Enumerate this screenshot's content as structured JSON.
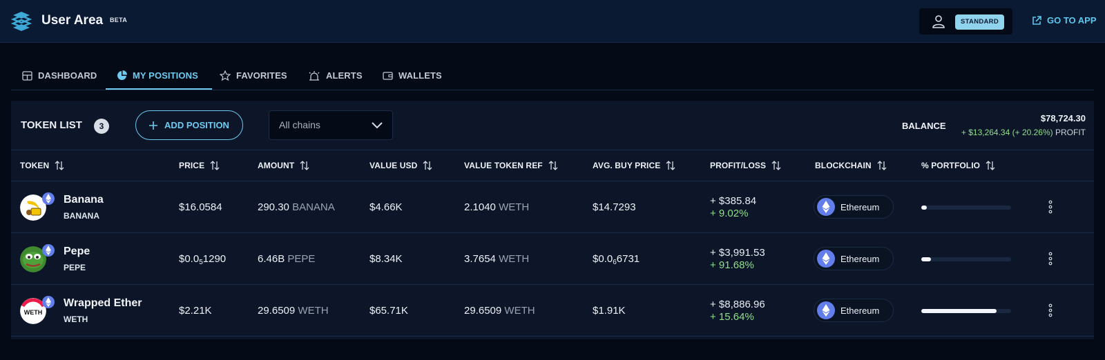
{
  "header": {
    "title": "User Area",
    "badge": "BETA",
    "plan": "STANDARD",
    "go_to_app": "GO TO APP",
    "icons": {
      "logo": "logo-icon",
      "user": "user-icon",
      "external": "external-link-icon"
    }
  },
  "tabs": [
    {
      "label": "DASHBOARD",
      "icon": "dashboard-icon",
      "active": false
    },
    {
      "label": "MY POSITIONS",
      "icon": "pie-chart-icon",
      "active": true
    },
    {
      "label": "FAVORITES",
      "icon": "star-icon",
      "active": false
    },
    {
      "label": "ALERTS",
      "icon": "alarm-icon",
      "active": false
    },
    {
      "label": "WALLETS",
      "icon": "wallet-icon",
      "active": false
    }
  ],
  "toolbar": {
    "title": "TOKEN LIST",
    "count": "3",
    "add_label": "ADD POSITION",
    "chain_filter": "All chains",
    "balance_label": "BALANCE",
    "balance_value": "$78,724.30",
    "balance_change": "+ $13,264.34 (+ 20.26%)",
    "balance_suffix": "PROFIT"
  },
  "columns": [
    "TOKEN",
    "PRICE",
    "AMOUNT",
    "VALUE USD",
    "VALUE TOKEN REF",
    "AVG. BUY PRICE",
    "PROFIT/LOSS",
    "BLOCKCHAIN",
    "% PORTFOLIO"
  ],
  "rows": [
    {
      "name": "Banana",
      "symbol": "BANANA",
      "price_main": "$16.0584",
      "price_sub": "",
      "price_tail": "",
      "amount": "290.30",
      "amount_unit": "BANANA",
      "value_usd": "$4.66K",
      "value_ref": "2.1040",
      "value_ref_unit": "WETH",
      "avg_main": "$14.7293",
      "avg_sub": "",
      "avg_tail": "",
      "pl_usd": "+ $385.84",
      "pl_pct": "+ 9.02%",
      "chain": "Ethereum",
      "portfolio_pct": 5.9
    },
    {
      "name": "Pepe",
      "symbol": "PEPE",
      "price_main": "$0.0",
      "price_sub": "5",
      "price_tail": "1290",
      "amount": "6.46B",
      "amount_unit": "PEPE",
      "value_usd": "$8.34K",
      "value_ref": "3.7654",
      "value_ref_unit": "WETH",
      "avg_main": "$0.0",
      "avg_sub": "6",
      "avg_tail": "6731",
      "pl_usd": "+ $3,991.53",
      "pl_pct": "+ 91.68%",
      "chain": "Ethereum",
      "portfolio_pct": 10.6
    },
    {
      "name": "Wrapped Ether",
      "symbol": "WETH",
      "price_main": "$2.21K",
      "price_sub": "",
      "price_tail": "",
      "amount": "29.6509",
      "amount_unit": "WETH",
      "value_usd": "$65.71K",
      "value_ref": "29.6509",
      "value_ref_unit": "WETH",
      "avg_main": "$1.91K",
      "avg_sub": "",
      "avg_tail": "",
      "pl_usd": "+ $8,886.96",
      "pl_pct": "+ 15.64%",
      "chain": "Ethereum",
      "portfolio_pct": 83.5
    }
  ],
  "colors": {
    "accent": "#6fcaf0",
    "profit": "#8fe08a",
    "eth": "#627eea"
  }
}
